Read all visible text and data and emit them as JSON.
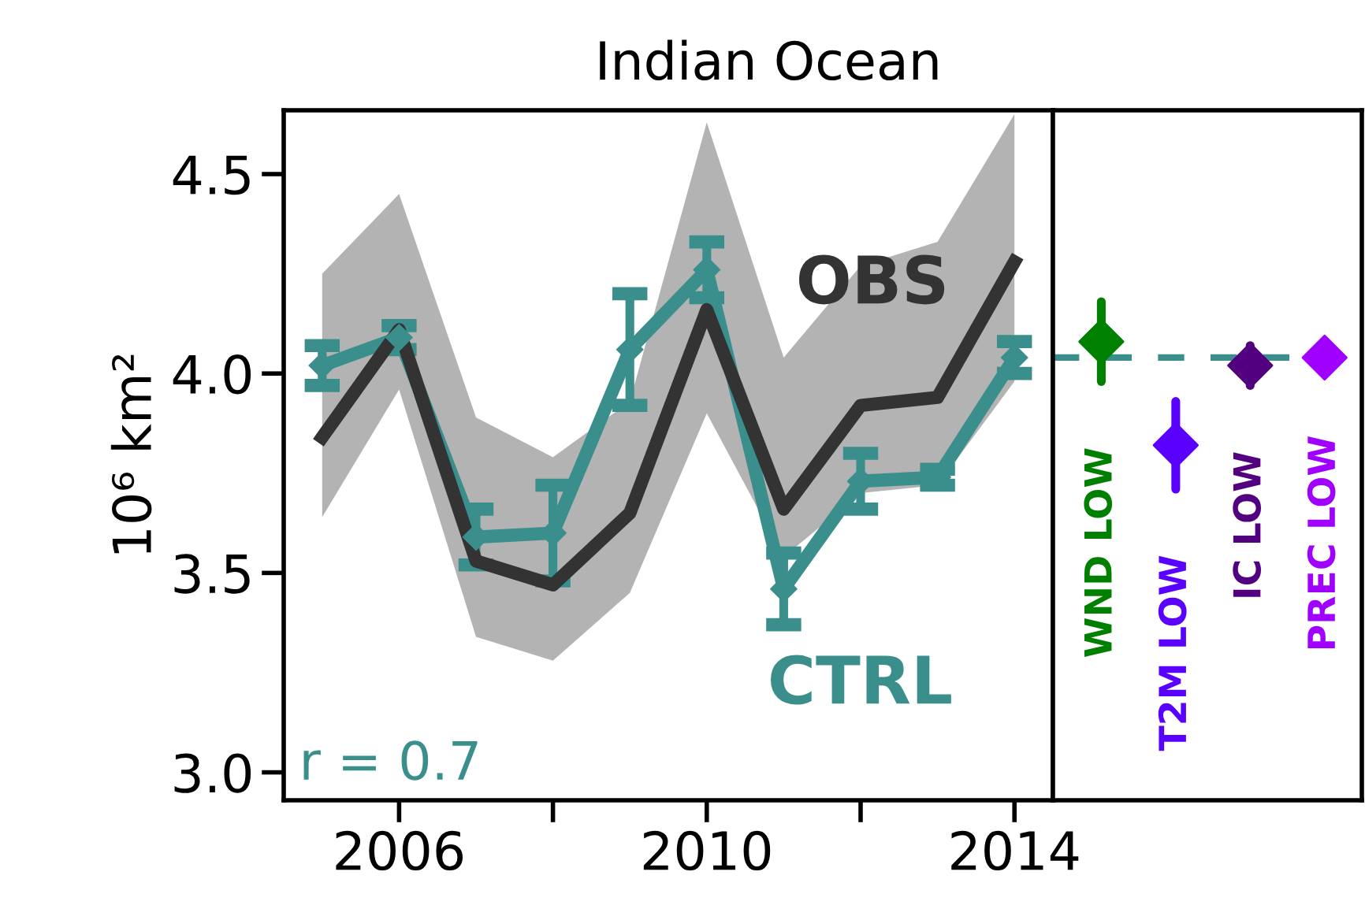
{
  "chart_data": [
    {
      "type": "line",
      "title": "Indian Ocean",
      "ylabel": "10⁶ km²",
      "x": [
        2005,
        2006,
        2007,
        2008,
        2009,
        2010,
        2011,
        2012,
        2013,
        2014
      ],
      "series": [
        {
          "name": "OBS",
          "color": "#333333",
          "values": [
            3.84,
            4.11,
            3.53,
            3.47,
            3.65,
            4.16,
            3.66,
            3.92,
            3.94,
            4.28
          ],
          "lower": [
            3.64,
            3.96,
            3.34,
            3.28,
            3.45,
            3.9,
            3.54,
            3.7,
            3.72,
            3.98
          ],
          "upper": [
            4.25,
            4.45,
            3.89,
            3.79,
            3.93,
            4.63,
            4.04,
            4.27,
            4.33,
            4.65
          ],
          "marker": "none"
        },
        {
          "name": "CTRL",
          "color": "#3a8f8c",
          "values": [
            4.02,
            4.09,
            3.59,
            3.6,
            4.06,
            4.26,
            3.46,
            3.73,
            3.74,
            4.04
          ],
          "errors": [
            0.05,
            0.03,
            0.07,
            0.12,
            0.14,
            0.07,
            0.09,
            0.07,
            0.02,
            0.04
          ],
          "marker": "diamond"
        }
      ],
      "annotations": [
        "r = 0.7"
      ],
      "xlim": [
        2004.5,
        2014.5
      ],
      "xticks": [
        2006,
        {
          "value": 2008,
          "label": null
        },
        2010,
        {
          "value": 2012,
          "label": null
        },
        2014
      ],
      "ylim": [
        2.93,
        4.66
      ],
      "yticks": [
        {
          "value": 3,
          "label": "3.0"
        },
        3.5,
        {
          "value": 4,
          "label": "4.0"
        },
        4.5
      ],
      "grid": false,
      "legend": false
    },
    {
      "type": "scatter",
      "categories": [
        "WND LOW",
        "T2M LOW",
        "IC LOW",
        "PREC LOW"
      ],
      "values": [
        4.08,
        3.82,
        4.02,
        4.04
      ],
      "errors": [
        0.1,
        0.11,
        0.05,
        0.03
      ],
      "colors": [
        "#008000",
        "#5a00ff",
        "#520080",
        "#a000ff"
      ],
      "marker": "diamond",
      "ref_lines": [
        {
          "axis": "y",
          "value": 4.04,
          "color": "#3a8f8c",
          "line_style": "dashed"
        }
      ],
      "ylim": [
        2.93,
        4.66
      ],
      "tick_labels": false,
      "grid": false,
      "legend": false
    }
  ]
}
